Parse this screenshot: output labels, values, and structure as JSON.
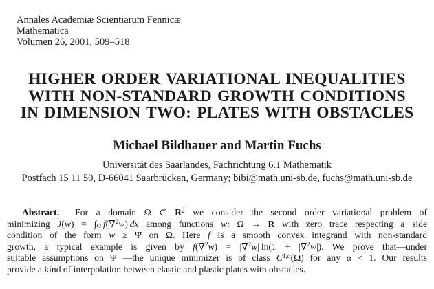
{
  "colors": {
    "background": "#ffffff",
    "text": "#1b1b1b"
  },
  "journal_header": {
    "lines": [
      "Annales Academiæ Scientiarum Fennicæ",
      "Mathematica",
      "Volumen 26, 2001, 509–518"
    ]
  },
  "title": {
    "lines": [
      "HIGHER ORDER VARIATIONAL INEQUALITIES",
      "WITH NON-STANDARD GROWTH CONDITIONS",
      "IN DIMENSION TWO: PLATES WITH OBSTACLES"
    ]
  },
  "authors": "Michael Bildhauer and Martin Fuchs",
  "affiliation": "Universität des Saarlandes, Fachrichtung 6.1 Mathematik",
  "address": "Postfach 15 11 50, D-66041 Saarbrücken, Germany; bibi@math.uni-sb.de, fuchs@math.uni-sb.de",
  "abstract": {
    "label": "Abstract.",
    "lines_html": [
      "<b>Abstract.</b>&nbsp;&nbsp;For a domain Ω ⊂ <b>R</b><sup>2</sup> we consider the second order variational problem of",
      "minimizing <i>J</i>(<i>w</i>) = ∫<sub>Ω</sub>&thinsp;<i>f</i>(∇<sup>2</sup><i>w</i>)&thinsp;<i>dx</i> among functions <i>w</i>: Ω → <b>R</b> with zero trace respecting a side",
      "condition of the form <i>w</i> ≥ Ψ on Ω. Here <i>f</i> is a smooth convex integrand with non-standard",
      "growth, a typical example is given by <i>f</i>(∇<sup>2</sup><i>w</i>) = |∇<sup>2</sup><i>w</i>|&thinsp;ln(1 + |∇<sup>2</sup><i>w</i>|). We prove that—under",
      "suitable assumptions on Ψ&nbsp;—the unique minimizer is of class <i>C</i><sup>1,<i>α</i></sup>(Ω) for any <i>α</i> &lt; 1. Our results",
      "provide a kind of interpolation between elastic and plastic plates with obstacles."
    ]
  }
}
